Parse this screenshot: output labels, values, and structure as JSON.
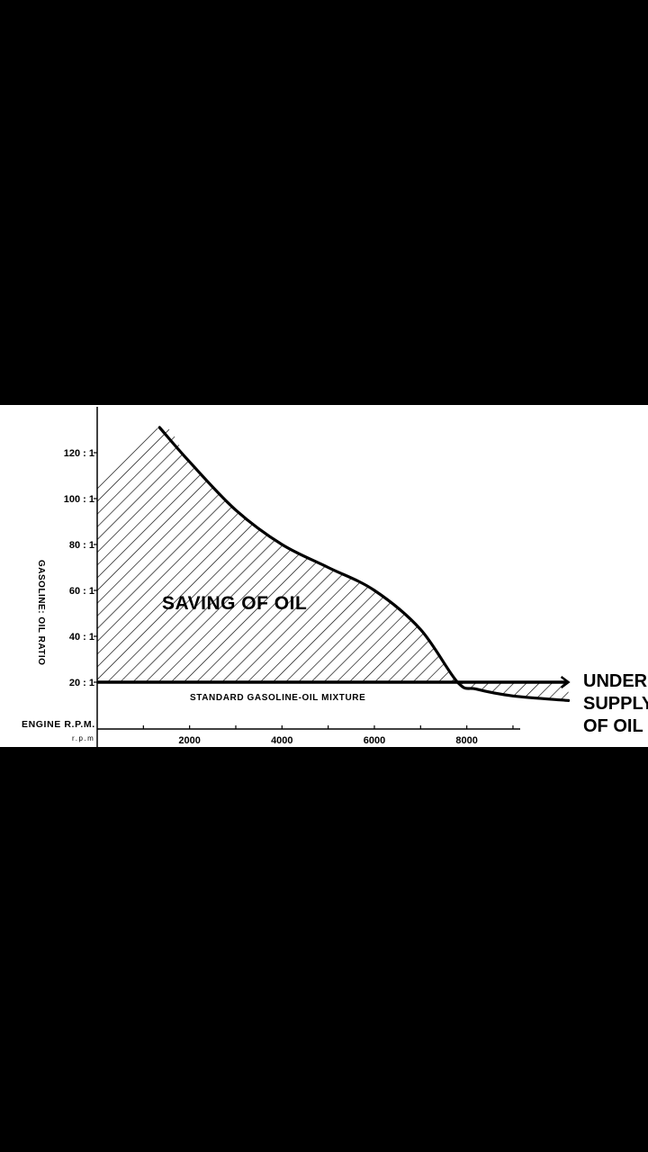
{
  "colors": {
    "background": "#000000",
    "panel": "#ffffff",
    "ink": "#000000"
  },
  "chart_data": {
    "type": "area",
    "ylabel": "GASOLINE: OIL RATIO",
    "xlabel": "ENGINE R.P.M.",
    "xunit": "r.p.m",
    "x_ticks": [
      {
        "value": 2000,
        "label": "2000"
      },
      {
        "value": 4000,
        "label": "4000"
      },
      {
        "value": 6000,
        "label": "6000"
      },
      {
        "value": 8000,
        "label": "8000"
      }
    ],
    "y_ticks": [
      {
        "value": 20,
        "label": "20 : 1"
      },
      {
        "value": 40,
        "label": "40 : 1"
      },
      {
        "value": 60,
        "label": "60 : 1"
      },
      {
        "value": 80,
        "label": "80 : 1"
      },
      {
        "value": 100,
        "label": "100 : 1"
      },
      {
        "value": 120,
        "label": "120 : 1"
      }
    ],
    "xlim": [
      0,
      9000
    ],
    "ylim": [
      0,
      135
    ],
    "baseline": {
      "value": 20,
      "label": "STANDARD GASOLINE-OIL MIXTURE",
      "end_x": 10200
    },
    "series": [
      {
        "values": [
          [
            0,
            106
          ],
          [
            1350,
            131
          ],
          [
            2000,
            116
          ],
          [
            3000,
            95
          ],
          [
            4000,
            80
          ],
          [
            5000,
            70
          ],
          [
            6000,
            60
          ],
          [
            7000,
            43
          ],
          [
            7800,
            20
          ],
          [
            8200,
            17
          ],
          [
            9000,
            14
          ],
          [
            10200,
            12
          ]
        ]
      }
    ],
    "annotations": {
      "saving": "SAVING OF OIL",
      "under_lines": [
        "UNDER",
        "SUPPLY",
        "OF OIL"
      ]
    },
    "grid": false
  }
}
